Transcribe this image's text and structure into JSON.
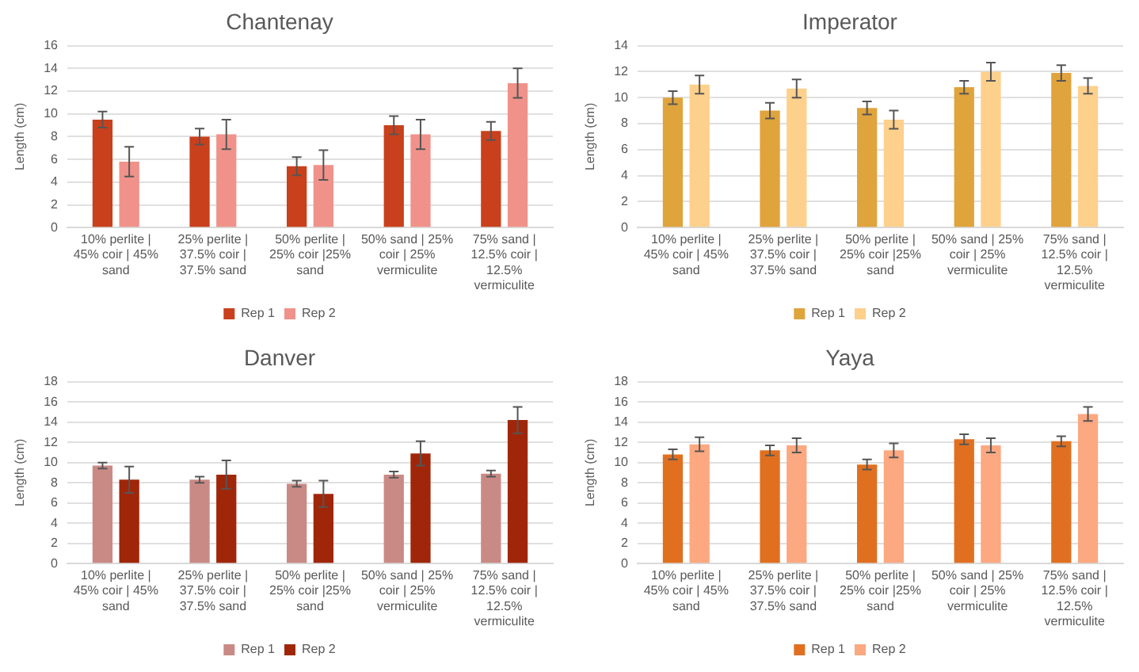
{
  "chart_data": [
    {
      "type": "bar",
      "title": "Chantenay",
      "ylabel": "Length (cm)",
      "categories": [
        "10% perlite | 45% coir | 45% sand",
        "25% perlite | 37.5% coir | 37.5% sand",
        "50% perlite | 25% coir |25% sand",
        "50% sand | 25% coir | 25% vermiculite",
        "75% sand | 12.5% coir | 12.5% vermiculite"
      ],
      "ylim": [
        0,
        16
      ],
      "yticks": [
        0,
        2,
        4,
        6,
        8,
        10,
        12,
        14,
        16
      ],
      "grid": "y",
      "legend": "bottom",
      "series": [
        {
          "name": "Rep 1",
          "color": "#c9401c",
          "values": [
            9.5,
            8.0,
            5.4,
            9.0,
            8.5
          ],
          "errors": [
            0.7,
            0.7,
            0.8,
            0.8,
            0.8
          ]
        },
        {
          "name": "Rep 2",
          "color": "#f0928a",
          "values": [
            5.8,
            8.2,
            5.5,
            8.2,
            12.7
          ],
          "errors": [
            1.3,
            1.3,
            1.3,
            1.3,
            1.3
          ]
        }
      ]
    },
    {
      "type": "bar",
      "title": "Imperator",
      "ylabel": "Length (cm)",
      "categories": [
        "10% perlite | 45% coir | 45% sand",
        "25% perlite | 37.5% coir | 37.5% sand",
        "50% perlite | 25% coir |25% sand",
        "50% sand | 25% coir | 25% vermiculite",
        "75% sand | 12.5% coir | 12.5% vermiculite"
      ],
      "ylim": [
        0,
        14
      ],
      "yticks": [
        0,
        2,
        4,
        6,
        8,
        10,
        12,
        14
      ],
      "grid": "y",
      "legend": "bottom",
      "series": [
        {
          "name": "Rep 1",
          "color": "#e0a43c",
          "values": [
            10.0,
            9.0,
            9.2,
            10.8,
            11.9
          ],
          "errors": [
            0.5,
            0.6,
            0.5,
            0.5,
            0.6
          ]
        },
        {
          "name": "Rep 2",
          "color": "#fdd08c",
          "values": [
            11.0,
            10.7,
            8.3,
            12.0,
            10.9
          ],
          "errors": [
            0.7,
            0.7,
            0.7,
            0.7,
            0.6
          ]
        }
      ]
    },
    {
      "type": "bar",
      "title": "Danver",
      "ylabel": "Length (cm)",
      "categories": [
        "10% perlite | 45% coir | 45% sand",
        "25% perlite | 37.5% coir | 37.5% sand",
        "50% perlite | 25% coir |25% sand",
        "50% sand | 25% coir | 25% vermiculite",
        "75% sand | 12.5% coir | 12.5% vermiculite"
      ],
      "ylim": [
        0,
        18
      ],
      "yticks": [
        0,
        2,
        4,
        6,
        8,
        10,
        12,
        14,
        16,
        18
      ],
      "grid": "y",
      "legend": "bottom",
      "series": [
        {
          "name": "Rep 1",
          "color": "#c98a86",
          "values": [
            9.7,
            8.3,
            7.9,
            8.8,
            8.9
          ],
          "errors": [
            0.3,
            0.3,
            0.3,
            0.3,
            0.3
          ]
        },
        {
          "name": "Rep 2",
          "color": "#a0260a",
          "values": [
            8.3,
            8.8,
            6.9,
            10.9,
            14.2
          ],
          "errors": [
            1.3,
            1.4,
            1.3,
            1.2,
            1.3
          ]
        }
      ]
    },
    {
      "type": "bar",
      "title": "Yaya",
      "ylabel": "Length (cm)",
      "categories": [
        "10% perlite | 45% coir | 45% sand",
        "25% perlite | 37.5% coir | 37.5% sand",
        "50% perlite | 25% coir |25% sand",
        "50% sand | 25% coir | 25% vermiculite",
        "75% sand | 12.5% coir | 12.5% vermiculite"
      ],
      "ylim": [
        0,
        18
      ],
      "yticks": [
        0,
        2,
        4,
        6,
        8,
        10,
        12,
        14,
        16,
        18
      ],
      "grid": "y",
      "legend": "bottom",
      "series": [
        {
          "name": "Rep 1",
          "color": "#e07020",
          "values": [
            10.8,
            11.2,
            9.8,
            12.3,
            12.1
          ],
          "errors": [
            0.5,
            0.5,
            0.5,
            0.5,
            0.5
          ]
        },
        {
          "name": "Rep 2",
          "color": "#fca880",
          "values": [
            11.8,
            11.7,
            11.2,
            11.7,
            14.8
          ],
          "errors": [
            0.7,
            0.7,
            0.7,
            0.7,
            0.7
          ]
        }
      ]
    }
  ]
}
